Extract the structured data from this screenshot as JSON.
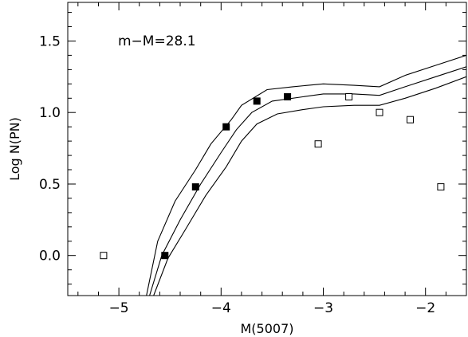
{
  "chart_data": {
    "type": "scatter",
    "title": "",
    "xlabel": "M(5007)",
    "ylabel": "Log N(PN)",
    "xlim": [
      -5.5,
      -1.6
    ],
    "ylim": [
      -0.28,
      1.77
    ],
    "x_ticks": [
      -5,
      -4,
      -3,
      -2
    ],
    "x_tick_labels": [
      "−5",
      "−4",
      "−3",
      "−2"
    ],
    "y_ticks": [
      0.0,
      0.5,
      1.0,
      1.5
    ],
    "y_tick_labels": [
      "0.0",
      "0.5",
      "1.0",
      "1.5"
    ],
    "grid": false,
    "annotation": "m−M=28.1",
    "series": [
      {
        "marker": "filled-square",
        "points": [
          [
            -4.55,
            0.0
          ],
          [
            -4.25,
            0.48
          ],
          [
            -3.95,
            0.9
          ],
          [
            -3.65,
            1.08
          ],
          [
            -3.35,
            1.11
          ]
        ]
      },
      {
        "marker": "open-square",
        "points": [
          [
            -5.15,
            0.0
          ],
          [
            -3.05,
            0.78
          ],
          [
            -2.75,
            1.11
          ],
          [
            -2.45,
            1.0
          ],
          [
            -2.15,
            0.95
          ],
          [
            -1.85,
            0.48
          ]
        ]
      }
    ],
    "curves": [
      {
        "role": "upper",
        "points": [
          [
            -4.73,
            -0.28
          ],
          [
            -4.62,
            0.1
          ],
          [
            -4.45,
            0.38
          ],
          [
            -4.25,
            0.6
          ],
          [
            -4.1,
            0.78
          ],
          [
            -3.9,
            0.95
          ],
          [
            -3.8,
            1.05
          ],
          [
            -3.55,
            1.16
          ],
          [
            -3.3,
            1.18
          ],
          [
            -3.0,
            1.2
          ],
          [
            -2.7,
            1.19
          ],
          [
            -2.45,
            1.18
          ],
          [
            -2.2,
            1.26
          ],
          [
            -1.9,
            1.33
          ],
          [
            -1.6,
            1.4
          ]
        ]
      },
      {
        "role": "middle",
        "points": [
          [
            -4.7,
            -0.28
          ],
          [
            -4.58,
            0.0
          ],
          [
            -4.4,
            0.25
          ],
          [
            -4.2,
            0.5
          ],
          [
            -4.0,
            0.72
          ],
          [
            -3.85,
            0.88
          ],
          [
            -3.7,
            1.0
          ],
          [
            -3.5,
            1.08
          ],
          [
            -3.2,
            1.11
          ],
          [
            -3.0,
            1.13
          ],
          [
            -2.7,
            1.13
          ],
          [
            -2.45,
            1.12
          ],
          [
            -2.2,
            1.18
          ],
          [
            -1.9,
            1.25
          ],
          [
            -1.6,
            1.32
          ]
        ]
      },
      {
        "role": "lower",
        "points": [
          [
            -4.66,
            -0.28
          ],
          [
            -4.52,
            -0.02
          ],
          [
            -4.35,
            0.18
          ],
          [
            -4.15,
            0.42
          ],
          [
            -3.95,
            0.62
          ],
          [
            -3.8,
            0.8
          ],
          [
            -3.65,
            0.92
          ],
          [
            -3.45,
            0.99
          ],
          [
            -3.2,
            1.02
          ],
          [
            -3.0,
            1.04
          ],
          [
            -2.7,
            1.05
          ],
          [
            -2.45,
            1.05
          ],
          [
            -2.2,
            1.1
          ],
          [
            -1.9,
            1.17
          ],
          [
            -1.6,
            1.25
          ]
        ]
      }
    ]
  }
}
